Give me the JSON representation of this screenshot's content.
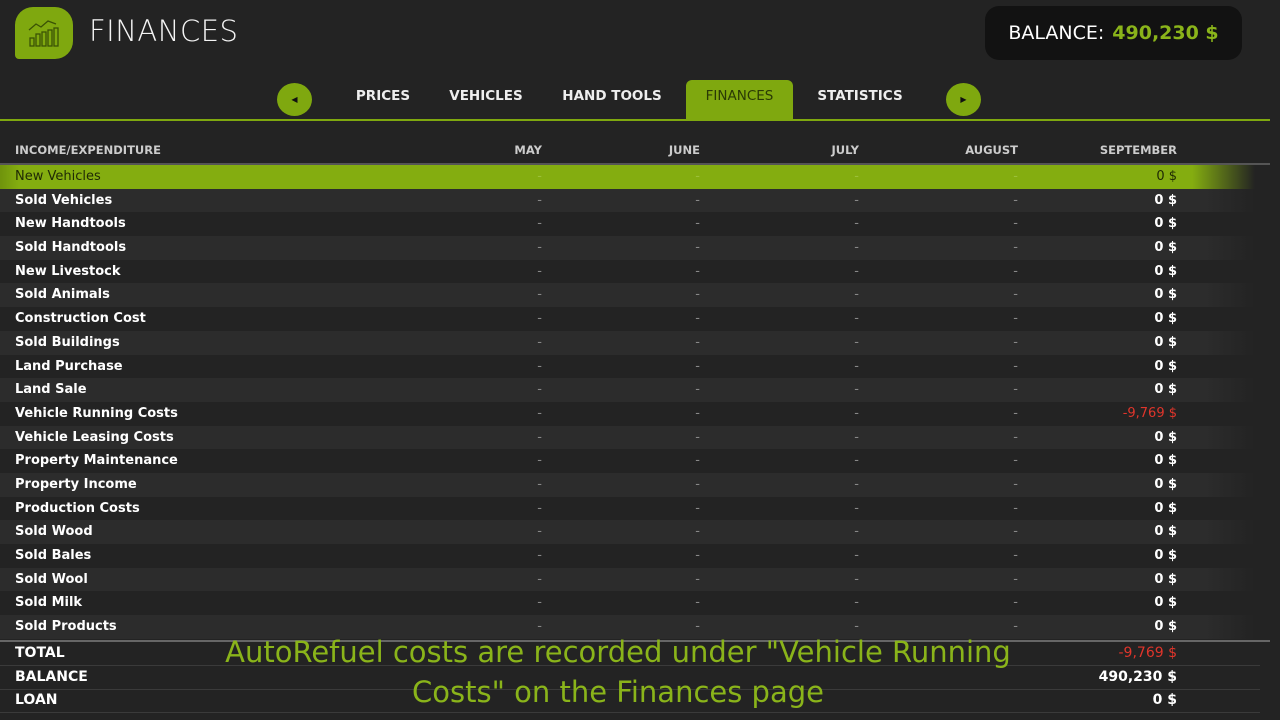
{
  "header": {
    "title": "FINANCES",
    "balance_label": "BALANCE:",
    "balance_value": "490,230 $",
    "logo_icon": "chart-icon"
  },
  "tabs": [
    {
      "label": "PRICES"
    },
    {
      "label": "VEHICLES"
    },
    {
      "label": "HAND TOOLS"
    },
    {
      "label": "FINANCES",
      "active": true
    },
    {
      "label": "STATISTICS"
    }
  ],
  "table": {
    "columns": [
      "INCOME/EXPENDITURE",
      "MAY",
      "JUNE",
      "JULY",
      "AUGUST",
      "SEPTEMBER"
    ],
    "rows": [
      [
        "New Vehicles",
        "-",
        "-",
        "-",
        "-",
        "0 $"
      ],
      [
        "Sold Vehicles",
        "-",
        "-",
        "-",
        "-",
        "0 $"
      ],
      [
        "New Handtools",
        "-",
        "-",
        "-",
        "-",
        "0 $"
      ],
      [
        "Sold Handtools",
        "-",
        "-",
        "-",
        "-",
        "0 $"
      ],
      [
        "New Livestock",
        "-",
        "-",
        "-",
        "-",
        "0 $"
      ],
      [
        "Sold Animals",
        "-",
        "-",
        "-",
        "-",
        "0 $"
      ],
      [
        "Construction Cost",
        "-",
        "-",
        "-",
        "-",
        "0 $"
      ],
      [
        "Sold Buildings",
        "-",
        "-",
        "-",
        "-",
        "0 $"
      ],
      [
        "Land Purchase",
        "-",
        "-",
        "-",
        "-",
        "0 $"
      ],
      [
        "Land Sale",
        "-",
        "-",
        "-",
        "-",
        "0 $"
      ],
      [
        "Vehicle Running Costs",
        "-",
        "-",
        "-",
        "-",
        "-9,769 $"
      ],
      [
        "Vehicle Leasing Costs",
        "-",
        "-",
        "-",
        "-",
        "0 $"
      ],
      [
        "Property Maintenance",
        "-",
        "-",
        "-",
        "-",
        "0 $"
      ],
      [
        "Property Income",
        "-",
        "-",
        "-",
        "-",
        "0 $"
      ],
      [
        "Production Costs",
        "-",
        "-",
        "-",
        "-",
        "0 $"
      ],
      [
        "Sold Wood",
        "-",
        "-",
        "-",
        "-",
        "0 $"
      ],
      [
        "Sold Bales",
        "-",
        "-",
        "-",
        "-",
        "0 $"
      ],
      [
        "Sold Wool",
        "-",
        "-",
        "-",
        "-",
        "0 $"
      ],
      [
        "Sold Milk",
        "-",
        "-",
        "-",
        "-",
        "0 $"
      ],
      [
        "Sold Products",
        "-",
        "-",
        "-",
        "-",
        "0 $"
      ]
    ],
    "summary": [
      [
        "TOTAL",
        "-9,769 $"
      ],
      [
        "BALANCE",
        "490,230 $"
      ],
      [
        "LOAN",
        "0 $"
      ]
    ]
  },
  "caption": "AutoRefuel costs are recorded under \"Vehicle Running Costs\" on the Finances page",
  "colors": {
    "accent": "#84ad10",
    "negative": "#e0352b"
  }
}
